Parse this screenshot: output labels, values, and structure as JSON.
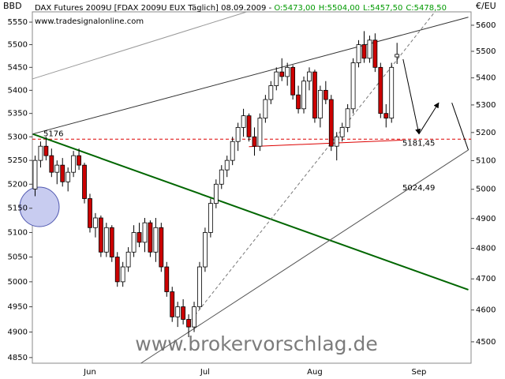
{
  "chart_data": {
    "type": "candlestick",
    "left_axis_label": "BBD",
    "right_axis_label": "€/EU",
    "title": "DAX Futures 2009U [FDAX 2009U EUX  Täglich] 08.09.2009 - ",
    "ohlc_text": [
      "O:5473,00",
      "H:5504,00",
      "L:5457,50",
      "C:5478,50"
    ],
    "ohlc_text_color": "#009900",
    "source": "www.tradesignalonline.com",
    "watermark": "www.brokervorschlag.de",
    "log_scale": true,
    "grid": false,
    "up_color": "#ffffff",
    "down_color": "#cc0000",
    "categories": [
      null,
      null,
      null,
      null,
      null,
      null,
      null,
      null,
      null,
      null,
      "Jun",
      null,
      null,
      null,
      null,
      null,
      null,
      null,
      null,
      null,
      null,
      null,
      null,
      null,
      null,
      null,
      null,
      null,
      null,
      null,
      null,
      "Jul",
      null,
      null,
      null,
      null,
      null,
      null,
      null,
      null,
      null,
      null,
      null,
      null,
      null,
      null,
      null,
      null,
      null,
      null,
      null,
      "Aug",
      null,
      null,
      null,
      null,
      null,
      null,
      null,
      null,
      null,
      null,
      null,
      null,
      null,
      null,
      null,
      null,
      null,
      null,
      "Sep",
      null,
      null,
      null,
      null,
      null,
      null,
      null,
      null,
      null
    ],
    "open": [
      5190,
      5250,
      5280,
      5260,
      5225,
      5240,
      5205,
      5225,
      5260,
      5240,
      5170,
      5110,
      5130,
      5060,
      5110,
      5050,
      5000,
      5030,
      5060,
      5100,
      5080,
      5120,
      5060,
      5110,
      5030,
      4980,
      4930,
      4950,
      4925,
      4910,
      4950,
      5030,
      5100,
      5160,
      5200,
      5230,
      5250,
      5290,
      5320,
      5345,
      5300,
      5280,
      5340,
      5380,
      5410,
      5440,
      5430,
      5450,
      5390,
      5360,
      5420,
      5440,
      5340,
      5400,
      5380,
      5280,
      5300,
      5320,
      5360,
      5460,
      5500,
      5470,
      5510,
      5450,
      5350,
      5340,
      5473,
      null,
      null,
      null,
      null,
      null,
      null,
      null,
      null,
      null,
      null,
      null,
      null,
      null
    ],
    "high": [
      5260,
      5290,
      5300,
      5275,
      5250,
      5255,
      5235,
      5270,
      5275,
      5245,
      5180,
      5140,
      5135,
      5120,
      5115,
      5060,
      5040,
      5070,
      5115,
      5120,
      5130,
      5125,
      5130,
      5120,
      5040,
      4990,
      4960,
      4965,
      4935,
      4960,
      5040,
      5110,
      5170,
      5210,
      5240,
      5260,
      5300,
      5330,
      5360,
      5350,
      5320,
      5350,
      5390,
      5420,
      5450,
      5470,
      5460,
      5455,
      5410,
      5430,
      5450,
      5445,
      5410,
      5420,
      5390,
      5310,
      5330,
      5370,
      5470,
      5510,
      5530,
      5520,
      5525,
      5460,
      5370,
      5460,
      5504,
      null,
      null,
      null,
      null,
      null,
      null,
      null,
      null,
      null,
      null,
      null,
      null,
      null
    ],
    "low": [
      5175,
      5235,
      5250,
      5215,
      5200,
      5195,
      5185,
      5215,
      5230,
      5160,
      5100,
      5090,
      5050,
      5050,
      5040,
      4990,
      4990,
      5020,
      5050,
      5070,
      5060,
      5050,
      5040,
      5020,
      4970,
      4920,
      4910,
      4915,
      4890,
      4900,
      4945,
      5020,
      5090,
      5150,
      5190,
      5215,
      5240,
      5270,
      5300,
      5290,
      5260,
      5270,
      5330,
      5370,
      5400,
      5420,
      5410,
      5380,
      5350,
      5350,
      5400,
      5330,
      5320,
      5370,
      5270,
      5250,
      5290,
      5310,
      5350,
      5450,
      5460,
      5460,
      5440,
      5340,
      5320,
      5330,
      5457.5,
      null,
      null,
      null,
      null,
      null,
      null,
      null,
      null,
      null,
      null,
      null,
      null,
      null
    ],
    "close": [
      5250,
      5280,
      5260,
      5225,
      5240,
      5205,
      5225,
      5260,
      5240,
      5170,
      5110,
      5130,
      5060,
      5110,
      5050,
      5000,
      5030,
      5060,
      5100,
      5080,
      5120,
      5060,
      5110,
      5030,
      4980,
      4930,
      4950,
      4925,
      4910,
      4950,
      5030,
      5100,
      5160,
      5200,
      5230,
      5250,
      5290,
      5320,
      5345,
      5300,
      5280,
      5340,
      5380,
      5410,
      5440,
      5430,
      5450,
      5390,
      5360,
      5420,
      5440,
      5340,
      5400,
      5380,
      5280,
      5300,
      5320,
      5360,
      5460,
      5500,
      5470,
      5510,
      5450,
      5350,
      5340,
      5450,
      5478.5,
      null,
      null,
      null,
      null,
      null,
      null,
      null,
      null,
      null,
      null,
      null,
      null,
      null
    ],
    "ylim": [
      4839,
      5573
    ],
    "yticks": [
      4850,
      4900,
      4950,
      5000,
      5050,
      5100,
      5150,
      5200,
      5250,
      5300,
      5350,
      5400,
      5450,
      5500,
      5550
    ],
    "y2lim": [
      4434,
      5652
    ],
    "y2ticks": [
      4500,
      4600,
      4700,
      4800,
      4900,
      5000,
      5100,
      5200,
      5300,
      5400,
      5500,
      5600
    ],
    "trendlines": [
      {
        "color": "#006600",
        "x": [
          -0.43,
          79
        ],
        "y": [
          5306,
          4984
        ]
      },
      {
        "color": "#333333",
        "x": [
          -0.43,
          79
        ],
        "y": [
          5306,
          5561
        ]
      },
      {
        "color": "#999999",
        "x": [
          -0.43,
          38.6
        ],
        "y": [
          5425,
          5573
        ]
      },
      {
        "color": "#555555",
        "x": [
          19.3,
          79
        ],
        "y": [
          4839,
          5272
        ]
      },
      {
        "color": "#777777",
        "dashed": true,
        "x": [
          27.9,
          72.9
        ],
        "y": [
          4916,
          5573
        ]
      },
      {
        "color": "#dd0000",
        "x": [
          39,
          67.1
        ],
        "y": [
          5279,
          5293
        ]
      },
      {
        "color": "#000000",
        "arrow": true,
        "x": [
          67.1,
          70
        ],
        "y": [
          5468,
          5306
        ]
      },
      {
        "color": "#000000",
        "arrow": true,
        "x": [
          70,
          73.6
        ],
        "y": [
          5306,
          5373
        ]
      },
      {
        "color": "#000000",
        "x": [
          76,
          79
        ],
        "y": [
          5373,
          5272
        ]
      }
    ],
    "hline": {
      "value": 5176,
      "axis": "y2",
      "color": "#dd0000"
    },
    "annotations": [
      {
        "value": 5181.45,
        "label": "5181,45",
        "axis": "y2",
        "color": "#dd0000"
      },
      {
        "value": 5024.49,
        "label": "5024,49",
        "axis": "y2",
        "color": "#777777"
      }
    ]
  }
}
